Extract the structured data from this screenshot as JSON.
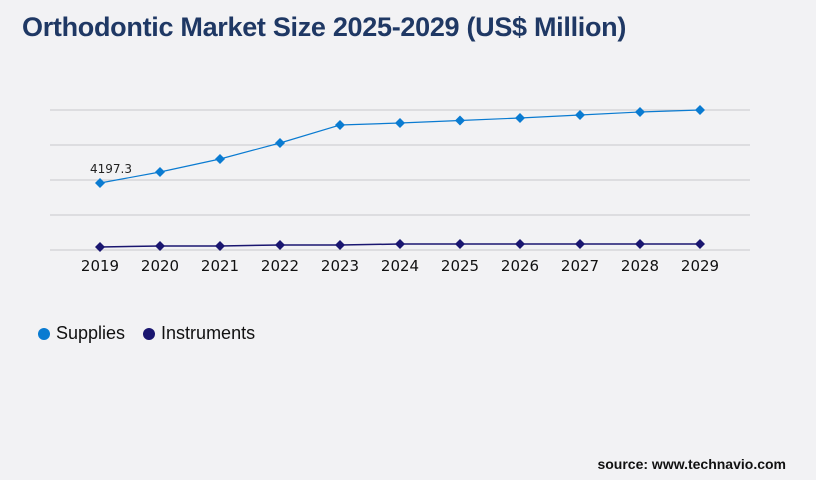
{
  "chart_data": {
    "type": "line",
    "title": "Orthodontic Market Size 2025-2029 (US$ Million)",
    "categories": [
      "2019",
      "2020",
      "2021",
      "2022",
      "2023",
      "2024",
      "2025",
      "2026",
      "2027",
      "2028",
      "2029"
    ],
    "series": [
      {
        "name": "Supplies",
        "color": "#0a7bd1",
        "values": [
          4197.3,
          4887,
          5701,
          6703,
          7831,
          7956,
          8113,
          8270,
          8458,
          8646,
          8771
        ]
      },
      {
        "name": "Instruments",
        "color": "#1a1670",
        "values": [
          188,
          251,
          251,
          313,
          313,
          376,
          376,
          376,
          376,
          376,
          376
        ]
      }
    ],
    "data_labels": [
      {
        "series": "Supplies",
        "category": "2019",
        "text": "4197.3"
      }
    ],
    "ylim": [
      0,
      8771
    ],
    "grid": true,
    "y_tick_labels": false,
    "legend_position": "bottom-left"
  },
  "source": "source: www.technavio.com"
}
